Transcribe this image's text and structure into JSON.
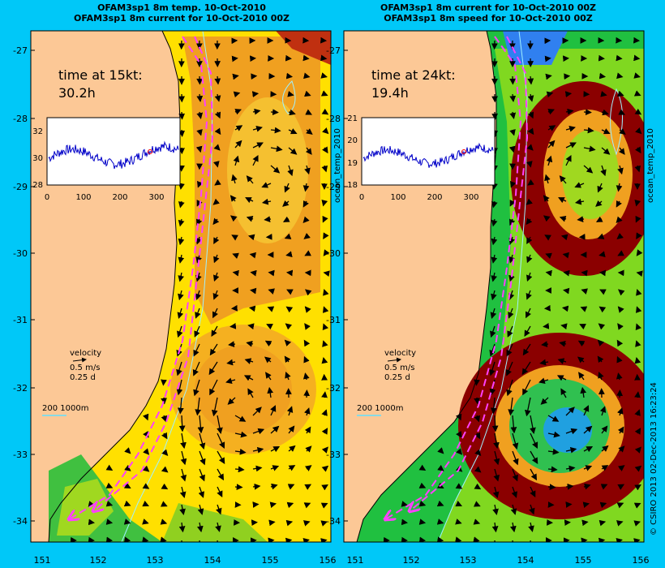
{
  "left_panel": {
    "title_line1": "OFAM3sp1 8m temp. 10-Oct-2010",
    "title_line2": "OFAM3sp1 8m current for 10-Oct-2010 00Z",
    "time_label": "time at 15kt:",
    "time_value": "30.2h",
    "inset": {
      "y_ticks": [
        "32",
        "30",
        "28"
      ],
      "x_ticks": [
        "0",
        "100",
        "200",
        "300"
      ]
    },
    "side_label": "ocean_temp_2010"
  },
  "right_panel": {
    "title_line1": "OFAM3sp1 8m current for 10-Oct-2010 00Z",
    "title_line2": "OFAM3sp1 8m speed for 10-Oct-2010 00Z",
    "time_label": "time at 24kt:",
    "time_value": "19.4h",
    "inset": {
      "y_ticks": [
        "21",
        "20",
        "19",
        "18"
      ],
      "x_ticks": [
        "0",
        "100",
        "200",
        "300"
      ]
    },
    "side_label": "ocean_temp_2010"
  },
  "legend": {
    "velocity_label": "velocity",
    "speed_label": "0.5 m/s",
    "duration_label": "0.25 d",
    "isobath_label": "200  1000m"
  },
  "axes": {
    "y_ticks": [
      "-27",
      "-28",
      "-29",
      "-30",
      "-31",
      "-32",
      "-33",
      "-34"
    ],
    "x_ticks": [
      "151",
      "152",
      "153",
      "154",
      "155",
      "156"
    ]
  },
  "credit": "© CSIRO 2013   02-Dec-2013 16:23:24",
  "colors": {
    "background": "#00c8f8",
    "land": "#fcc896",
    "route": "#ff40ff",
    "isobath": "#a0f0ff",
    "series": "#0000c8",
    "marker": "#ff0000"
  }
}
